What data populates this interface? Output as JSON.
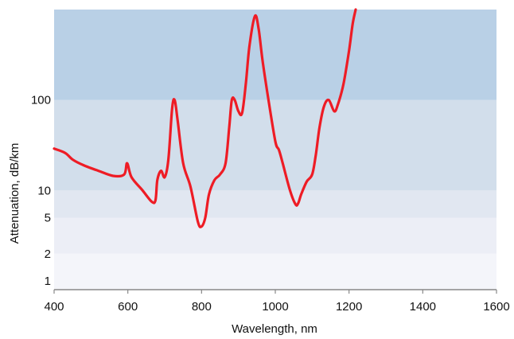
{
  "chart_data": {
    "type": "line",
    "xlabel": "Wavelength, nm",
    "ylabel": "Attenuation, dB/km",
    "x_scale": "linear",
    "y_scale": "log",
    "xlim": [
      400,
      1600
    ],
    "ylim": [
      0.8,
      1000
    ],
    "x_ticks": [
      {
        "value": 400,
        "label": "400"
      },
      {
        "value": 600,
        "label": "600"
      },
      {
        "value": 800,
        "label": "800"
      },
      {
        "value": 1000,
        "label": "1000"
      },
      {
        "value": 1200,
        "label": "1200"
      },
      {
        "value": 1400,
        "label": "1400"
      },
      {
        "value": 1600,
        "label": "1600"
      }
    ],
    "y_ticks": [
      {
        "value": 1,
        "label": "1"
      },
      {
        "value": 2,
        "label": "2"
      },
      {
        "value": 5,
        "label": "5"
      },
      {
        "value": 10,
        "label": "10"
      },
      {
        "value": 100,
        "label": "100"
      }
    ],
    "bands": [
      {
        "from": 0.8,
        "to": 2,
        "color": "#f4f5fa"
      },
      {
        "from": 2,
        "to": 5,
        "color": "#eceef6"
      },
      {
        "from": 5,
        "to": 10,
        "color": "#e1e7f1"
      },
      {
        "from": 10,
        "to": 100,
        "color": "#d2deeb"
      },
      {
        "from": 100,
        "to": 1000,
        "color": "#b9d0e6"
      }
    ],
    "line_color": "#ee1c25",
    "series": [
      {
        "x": [
          400,
          430,
          450,
          480,
          520,
          560,
          590,
          598,
          610,
          640,
          665,
          675,
          680,
          690,
          700,
          710,
          720,
          727,
          735,
          750,
          770,
          790,
          800,
          810,
          820,
          835,
          850,
          865,
          875,
          882,
          890,
          900,
          910,
          920,
          930,
          945,
          955,
          965,
          980,
          1000,
          1010,
          1020,
          1040,
          1055,
          1062,
          1070,
          1085,
          1100,
          1110,
          1120,
          1132,
          1145,
          1160,
          1170,
          1185,
          1200,
          1210,
          1218
        ],
        "y": [
          29,
          26,
          22,
          19,
          16.5,
          14.5,
          15,
          20,
          14,
          10,
          7.5,
          7.8,
          13,
          16.5,
          14,
          22,
          80,
          100,
          60,
          20,
          11,
          4.5,
          4,
          5,
          9,
          13,
          15,
          20,
          50,
          100,
          100,
          75,
          72,
          150,
          400,
          850,
          600,
          280,
          110,
          35,
          28,
          20,
          10,
          7,
          7.2,
          9,
          12.5,
          15,
          25,
          50,
          85,
          100,
          75,
          90,
          150,
          350,
          700,
          1000
        ]
      }
    ]
  }
}
